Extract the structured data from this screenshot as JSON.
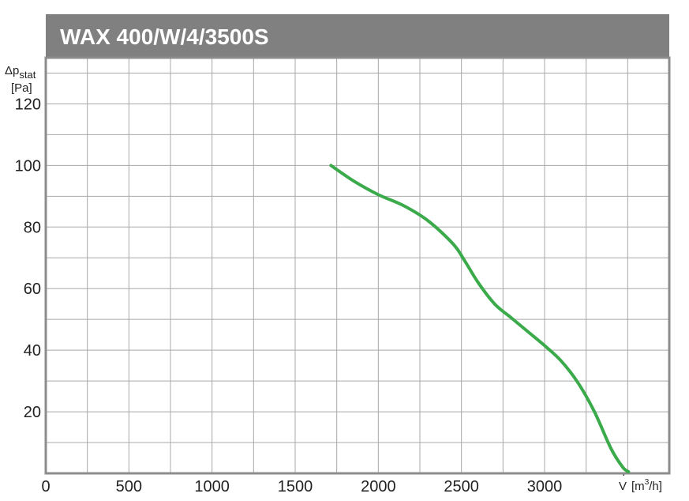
{
  "chart_data": {
    "type": "line",
    "title": "WAX 400/W/4/3500S",
    "ylabel_main": "Δp",
    "ylabel_sub": "stat",
    "ylabel_unit": "[Pa]",
    "xlabel_main": "V",
    "xlabel_unit_pre": "[m",
    "xlabel_unit_sup": "3",
    "xlabel_unit_post": "/h]",
    "xlim": [
      0,
      3750
    ],
    "ylim": [
      0,
      135
    ],
    "x_ticks": [
      0,
      500,
      1000,
      1500,
      2000,
      2500,
      3000
    ],
    "x_tick_labels": [
      "0",
      "500",
      "1000",
      "1500",
      "2000",
      "2500",
      "3000"
    ],
    "y_ticks": [
      20,
      40,
      60,
      80,
      100,
      120
    ],
    "y_tick_labels": [
      "20",
      "40",
      "60",
      "80",
      "100",
      "120"
    ],
    "x_minor_step": 250,
    "y_minor_step": 10,
    "grid": true,
    "legend": "none",
    "series": [
      {
        "color": "#3aaa4a",
        "x": [
          1715,
          1850,
          2000,
          2150,
          2300,
          2450,
          2520,
          2600,
          2700,
          2800,
          2900,
          3000,
          3100,
          3200,
          3300,
          3400,
          3470,
          3505
        ],
        "y": [
          100,
          95,
          90.5,
          87,
          82,
          74.5,
          69,
          62,
          55,
          50.5,
          46,
          41.5,
          36.5,
          29.5,
          20,
          8,
          2,
          0.5
        ]
      }
    ]
  },
  "colors": {
    "title_bar": "#808080",
    "grid": "#a8a8a8",
    "frame": "#8c8c8c",
    "curve": "#3aaa4a"
  }
}
